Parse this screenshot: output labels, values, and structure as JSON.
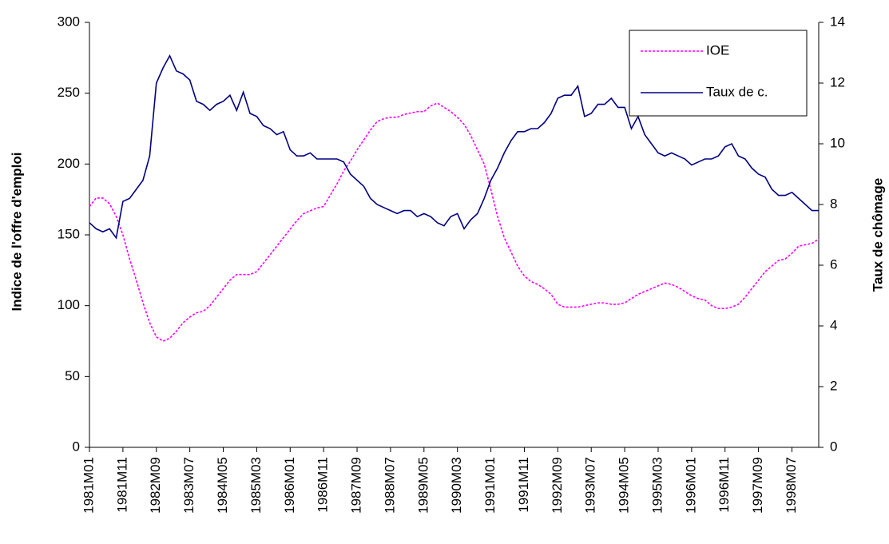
{
  "chart_data": {
    "type": "line",
    "y_label": "Indice de l'offre d'emploi",
    "y2_label": "Taux de chômage",
    "categories": [
      "1981M01",
      null,
      null,
      null,
      null,
      "1981M11",
      null,
      null,
      null,
      null,
      "1982M09",
      null,
      null,
      null,
      null,
      "1983M07",
      null,
      null,
      null,
      null,
      "1984M05",
      null,
      null,
      null,
      null,
      "1985M03",
      null,
      null,
      null,
      null,
      "1986M01",
      null,
      null,
      null,
      null,
      "1986M11",
      null,
      null,
      null,
      null,
      "1987M09",
      null,
      null,
      null,
      null,
      "1988M07",
      null,
      null,
      null,
      null,
      "1989M05",
      null,
      null,
      null,
      null,
      "1990M03",
      null,
      null,
      null,
      null,
      "1991M01",
      null,
      null,
      null,
      null,
      "1991M11",
      null,
      null,
      null,
      null,
      "1992M09",
      null,
      null,
      null,
      null,
      "1993M07",
      null,
      null,
      null,
      null,
      "1994M05",
      null,
      null,
      null,
      null,
      "1995M03",
      null,
      null,
      null,
      null,
      "1996M01",
      null,
      null,
      null,
      null,
      "1996M11",
      null,
      null,
      null,
      null,
      "1997M09",
      null,
      null,
      null,
      null,
      "1998M07",
      null,
      null,
      null,
      null
    ],
    "series": [
      {
        "name": "IOE",
        "color": "#ff00ff",
        "dashed": true,
        "values": [
          170,
          176,
          176,
          172,
          163,
          150,
          133,
          118,
          102,
          88,
          78,
          75,
          77,
          82,
          88,
          92,
          95,
          96,
          100,
          106,
          112,
          118,
          122,
          122,
          122,
          124,
          130,
          136,
          142,
          148,
          154,
          160,
          165,
          167,
          169,
          170,
          178,
          186,
          195,
          202,
          210,
          217,
          224,
          230,
          232,
          233,
          233,
          235,
          236,
          237,
          237,
          241,
          243,
          240,
          237,
          233,
          228,
          220,
          210,
          200,
          182,
          163,
          148,
          138,
          128,
          121,
          117,
          115,
          112,
          108,
          101,
          99,
          99,
          99,
          100,
          101,
          102,
          102,
          101,
          101,
          102,
          105,
          108,
          110,
          112,
          114,
          116,
          115,
          113,
          110,
          107,
          105,
          104,
          100,
          98,
          98,
          99,
          101,
          106,
          112,
          118,
          124,
          128,
          132,
          133,
          137,
          142,
          143,
          144,
          147
        ]
      },
      {
        "name": "Taux de c.",
        "color": "#000080",
        "dashed": false,
        "axis": "y2",
        "values": [
          7.4,
          7.2,
          7.1,
          7.2,
          6.9,
          8.1,
          8.2,
          8.5,
          8.8,
          9.6,
          12.0,
          12.5,
          12.9,
          12.4,
          12.3,
          12.1,
          11.4,
          11.3,
          11.1,
          11.3,
          11.4,
          11.6,
          11.1,
          11.7,
          11.0,
          10.9,
          10.6,
          10.5,
          10.3,
          10.4,
          9.8,
          9.6,
          9.6,
          9.7,
          9.5,
          9.5,
          9.5,
          9.5,
          9.4,
          9.0,
          8.8,
          8.6,
          8.2,
          8.0,
          7.9,
          7.8,
          7.7,
          7.8,
          7.8,
          7.6,
          7.7,
          7.6,
          7.4,
          7.3,
          7.6,
          7.7,
          7.2,
          7.5,
          7.7,
          8.2,
          8.8,
          9.2,
          9.7,
          10.1,
          10.4,
          10.4,
          10.5,
          10.5,
          10.7,
          11.0,
          11.5,
          11.6,
          11.6,
          11.9,
          10.9,
          11.0,
          11.3,
          11.3,
          11.5,
          11.2,
          11.2,
          10.5,
          10.9,
          10.3,
          10.0,
          9.7,
          9.6,
          9.7,
          9.6,
          9.5,
          9.3,
          9.4,
          9.5,
          9.5,
          9.6,
          9.9,
          10.0,
          9.6,
          9.5,
          9.2,
          9.0,
          8.9,
          8.5,
          8.3,
          8.3,
          8.4,
          8.2,
          8.0,
          7.8,
          7.8
        ]
      }
    ],
    "ylim": [
      0,
      300
    ],
    "yticks": [
      0,
      50,
      100,
      150,
      200,
      250,
      300
    ],
    "y2lim": [
      0,
      14
    ],
    "y2ticks": [
      0,
      2,
      4,
      6,
      8,
      10,
      12,
      14
    ],
    "legend": "top-right"
  }
}
